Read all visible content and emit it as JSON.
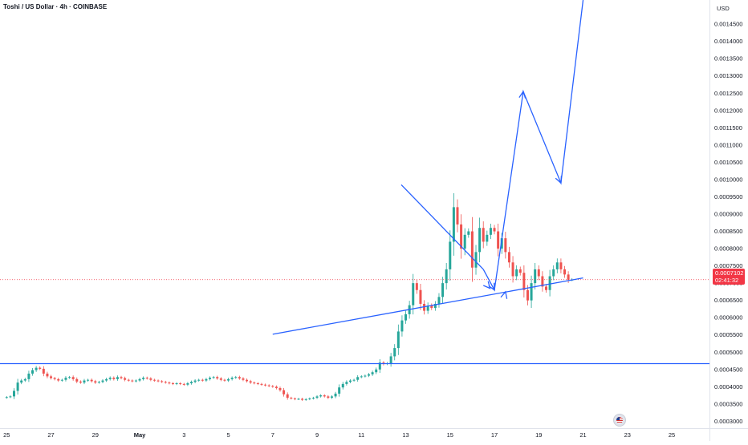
{
  "header": {
    "symbol_title": "Toshi / US Dollar · 4h · COINBASE",
    "currency": "USD"
  },
  "price_tag": {
    "price": "0.0007102",
    "countdown": "02:41:32"
  },
  "colors": {
    "up": "#26a69a",
    "down": "#ef5350",
    "drawing": "#2962ff",
    "price_line": "#f23645"
  },
  "icons": [
    "us-flag-event-icon"
  ],
  "chart_data": {
    "type": "candlestick",
    "title": "Toshi / US Dollar · 4h · COINBASE",
    "y_axis": {
      "side": "right",
      "unit": "USD",
      "min": 0.00028,
      "max": 0.00152,
      "ticks": [
        "0.0003000",
        "0.0003500",
        "0.0004000",
        "0.0004500",
        "0.0005000",
        "0.0005500",
        "0.0006000",
        "0.0006500",
        "0.0007000",
        "0.0007500",
        "0.0008000",
        "0.0008500",
        "0.0009000",
        "0.0009500",
        "0.0010000",
        "0.0010500",
        "0.0011000",
        "0.0011500",
        "0.0012000",
        "0.0012500",
        "0.0013000",
        "0.0013500",
        "0.0014000",
        "0.0014500"
      ]
    },
    "x_axis": {
      "range_days": [
        -0.3,
        31.7
      ],
      "day_offset_note": "April 25 = 0",
      "ticks": [
        {
          "day": 0,
          "label": "25"
        },
        {
          "day": 2,
          "label": "27"
        },
        {
          "day": 4,
          "label": "29"
        },
        {
          "day": 6,
          "label": "May"
        },
        {
          "day": 8,
          "label": "3"
        },
        {
          "day": 10,
          "label": "5"
        },
        {
          "day": 12,
          "label": "7"
        },
        {
          "day": 14,
          "label": "9"
        },
        {
          "day": 16,
          "label": "11"
        },
        {
          "day": 18,
          "label": "13"
        },
        {
          "day": 20,
          "label": "15"
        },
        {
          "day": 22,
          "label": "17"
        },
        {
          "day": 24,
          "label": "19"
        },
        {
          "day": 26,
          "label": "21"
        },
        {
          "day": 28,
          "label": "23"
        },
        {
          "day": 30,
          "label": "25"
        }
      ]
    },
    "grid": false,
    "horizontal_levels": [
      0.000467
    ],
    "last_price": 0.0007102,
    "close_series": [
      0.00037,
      0.000372,
      0.000388,
      0.000412,
      0.000418,
      0.000422,
      0.000438,
      0.000448,
      0.000455,
      0.000452,
      0.000438,
      0.00043,
      0.000425,
      0.000422,
      0.000418,
      0.00042,
      0.000426,
      0.000428,
      0.000422,
      0.000415,
      0.000412,
      0.000418,
      0.00042,
      0.000416,
      0.000412,
      0.000414,
      0.000418,
      0.000422,
      0.000426,
      0.000422,
      0.000428,
      0.000425,
      0.00042,
      0.000418,
      0.000416,
      0.000418,
      0.000422,
      0.000426,
      0.000424,
      0.00042,
      0.000418,
      0.000416,
      0.000414,
      0.000412,
      0.00041,
      0.000408,
      0.00041,
      0.000408,
      0.000406,
      0.00041,
      0.000414,
      0.000418,
      0.00042,
      0.000418,
      0.000422,
      0.000426,
      0.000428,
      0.000424,
      0.00042,
      0.000418,
      0.000422,
      0.000426,
      0.000428,
      0.000424,
      0.00042,
      0.000416,
      0.000412,
      0.00041,
      0.000408,
      0.000406,
      0.000404,
      0.000402,
      0.0004,
      0.000396,
      0.00039,
      0.000378,
      0.000368,
      0.000366,
      0.000364,
      0.000365,
      0.000362,
      0.000364,
      0.000366,
      0.000368,
      0.000372,
      0.000375,
      0.000372,
      0.000368,
      0.000372,
      0.00038,
      0.000398,
      0.000408,
      0.000414,
      0.000418,
      0.00042,
      0.000428,
      0.00043,
      0.000432,
      0.000436,
      0.000442,
      0.00045,
      0.00047,
      0.000466,
      0.000468,
      0.000488,
      0.000512,
      0.00056,
      0.000592,
      0.00061,
      0.000636,
      0.0007,
      0.00068,
      0.00064,
      0.00062,
      0.000635,
      0.000628,
      0.00064,
      0.00066,
      0.0007,
      0.00074,
      0.00082,
      0.00092,
      0.00087,
      0.0008,
      0.00084,
      0.00085,
      0.000745,
      0.00079,
      0.00086,
      0.00082,
      0.00084,
      0.00086,
      0.00085,
      0.0008,
      0.00083,
      0.00079,
      0.00076,
      0.00072,
      0.00074,
      0.00073,
      0.00068,
      0.00065,
      0.0007,
      0.00074,
      0.00072,
      0.00069,
      0.00068,
      0.00072,
      0.00074,
      0.00076,
      0.00074,
      0.000725,
      0.00071,
      0.0007102
    ],
    "drawings": [
      {
        "name": "ascending-trendline",
        "points": [
          [
            12.0,
            0.000552
          ],
          [
            26.0,
            0.000715
          ]
        ]
      },
      {
        "name": "descending-trendline",
        "points": [
          [
            17.8,
            0.000985
          ],
          [
            21.5,
            0.00074
          ]
        ]
      },
      {
        "name": "projection-path",
        "points": [
          [
            21.5,
            0.00074
          ],
          [
            22.0,
            0.00068
          ],
          [
            23.3,
            0.001255
          ],
          [
            25.0,
            0.00099
          ],
          [
            26.0,
            0.00152
          ]
        ]
      }
    ]
  }
}
